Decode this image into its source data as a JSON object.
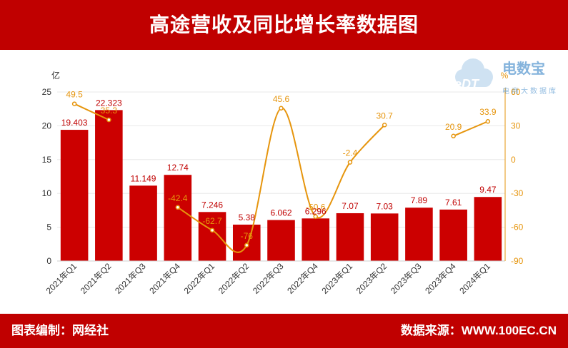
{
  "header": {
    "title": "高途营收及同比增长率数据图"
  },
  "footer": {
    "editor": "图表编制：网经社",
    "source": "数据来源：WWW.100EC.CN"
  },
  "watermark": {
    "logo_text": "eDT",
    "brand": "电数宝",
    "tagline": "电商大数据库"
  },
  "colors": {
    "header_bg": "#c00000",
    "bar": "#cc0000",
    "line": "#e6950d",
    "bar_label": "#c00000",
    "line_label": "#e6950d",
    "axis": "#333333"
  },
  "chart_data": {
    "type": "bar",
    "title": "高途营收及同比增长率数据图",
    "categories": [
      "2021年Q1",
      "2021年Q2",
      "2021年Q3",
      "2021年Q4",
      "2022年Q1",
      "2022年Q2",
      "2022年Q3",
      "2022年Q4",
      "2023年Q1",
      "2023年Q2",
      "2023年Q3",
      "2023年Q4",
      "2024年Q1"
    ],
    "series": [
      {
        "type": "bar",
        "axis": "left",
        "values": [
          19.403,
          22.323,
          11.149,
          12.74,
          7.246,
          5.38,
          6.062,
          6.296,
          7.07,
          7.03,
          7.89,
          7.61,
          9.47
        ],
        "labels": [
          "19.403",
          "22.323",
          "11.149",
          "12.74",
          "7.246",
          "5.38",
          "6.062",
          "6.296",
          "7.07",
          "7.03",
          "7.89",
          "7.61",
          "9.47"
        ]
      },
      {
        "type": "line",
        "axis": "right",
        "smooth": true,
        "values": [
          49.5,
          35.3,
          null,
          -42.4,
          -62.7,
          -76,
          45.6,
          -50.6,
          -2.4,
          30.7,
          null,
          20.9,
          33.9
        ],
        "labels": [
          "49.5",
          "35.3",
          "",
          "-42.4",
          "-62.7",
          "-76",
          "45.6",
          "-50.6",
          "-2.4",
          "30.7",
          "",
          "20.9",
          "33.9"
        ]
      }
    ],
    "y_left": {
      "label": "亿",
      "ylim": [
        0,
        25
      ],
      "ticks": [
        "0",
        "5",
        "10",
        "15",
        "20",
        "25"
      ]
    },
    "y_right": {
      "label": "%",
      "ylim": [
        -90,
        60
      ],
      "ticks": [
        "-90",
        "-60",
        "-30",
        "0",
        "30",
        "60"
      ]
    },
    "grid": true,
    "legend": "none"
  }
}
